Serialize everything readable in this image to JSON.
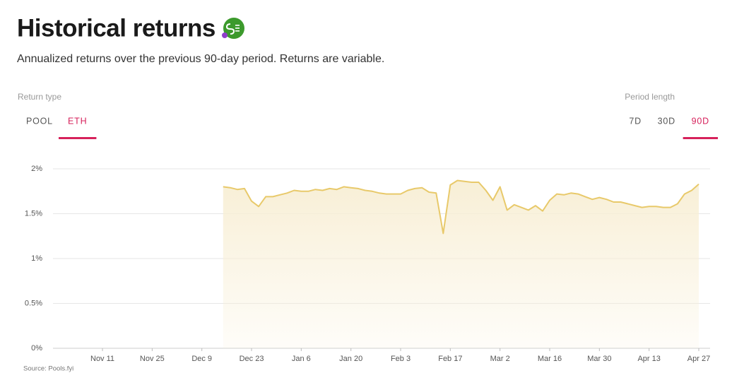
{
  "header": {
    "title": "Historical returns",
    "subtitle": "Annualized returns over the previous 90-day period. Returns are variable."
  },
  "controls": {
    "return_type_label": "Return type",
    "return_types": [
      "POOL",
      "ETH"
    ],
    "selected_return_type": 1,
    "period_label": "Period length",
    "periods": [
      "7D",
      "30D",
      "90D"
    ],
    "selected_period": 2
  },
  "chart_data": {
    "type": "area",
    "categories": [
      null,
      null,
      null,
      null,
      null,
      null,
      null,
      "Nov 11",
      null,
      null,
      null,
      null,
      null,
      null,
      "Nov 25",
      null,
      null,
      null,
      null,
      null,
      null,
      "Dec 9",
      null,
      null,
      null,
      null,
      null,
      null,
      "Dec 23",
      null,
      null,
      null,
      null,
      null,
      null,
      "Jan 6",
      null,
      null,
      null,
      null,
      null,
      null,
      "Jan 20",
      null,
      null,
      null,
      null,
      null,
      null,
      "Feb 3",
      null,
      null,
      null,
      null,
      null,
      null,
      "Feb 17",
      null,
      null,
      null,
      null,
      null,
      null,
      "Mar 2",
      null,
      null,
      null,
      null,
      null,
      null,
      "Mar 16",
      null,
      null,
      null,
      null,
      null,
      null,
      "Mar 30",
      null,
      null,
      null,
      null,
      null,
      null,
      "Apr 13",
      null,
      null,
      null,
      null,
      null,
      null,
      "Apr 27"
    ],
    "values": [
      null,
      null,
      null,
      null,
      null,
      null,
      null,
      null,
      null,
      null,
      null,
      null,
      null,
      null,
      null,
      null,
      null,
      null,
      null,
      null,
      null,
      null,
      null,
      null,
      1.8,
      1.79,
      1.77,
      1.78,
      1.64,
      1.58,
      1.69,
      1.69,
      1.71,
      1.73,
      1.76,
      1.75,
      1.75,
      1.77,
      1.76,
      1.78,
      1.77,
      1.8,
      1.79,
      1.78,
      1.76,
      1.75,
      1.73,
      1.72,
      1.72,
      1.72,
      1.76,
      1.78,
      1.79,
      1.74,
      1.73,
      1.28,
      1.82,
      1.87,
      1.86,
      1.85,
      1.85,
      1.76,
      1.65,
      1.8,
      1.54,
      1.6,
      1.57,
      1.54,
      1.59,
      1.53,
      1.65,
      1.72,
      1.71,
      1.73,
      1.72,
      1.69,
      1.66,
      1.68,
      1.66,
      1.63,
      1.63,
      1.61,
      1.59,
      1.57,
      1.58,
      1.58,
      1.57,
      1.57,
      1.61,
      1.72,
      1.76,
      1.83
    ],
    "color": "#e8c96a",
    "fill": "#f8efd6",
    "ylim": [
      0,
      2
    ],
    "yticks": [
      {
        "value": 0,
        "label": "0%"
      },
      {
        "value": 0.5,
        "label": "0.5%"
      },
      {
        "value": 1,
        "label": "1%"
      },
      {
        "value": 1.5,
        "label": "1.5%"
      },
      {
        "value": 2,
        "label": "2%"
      }
    ],
    "grid": true,
    "source": "Source: Pools.fyi"
  }
}
